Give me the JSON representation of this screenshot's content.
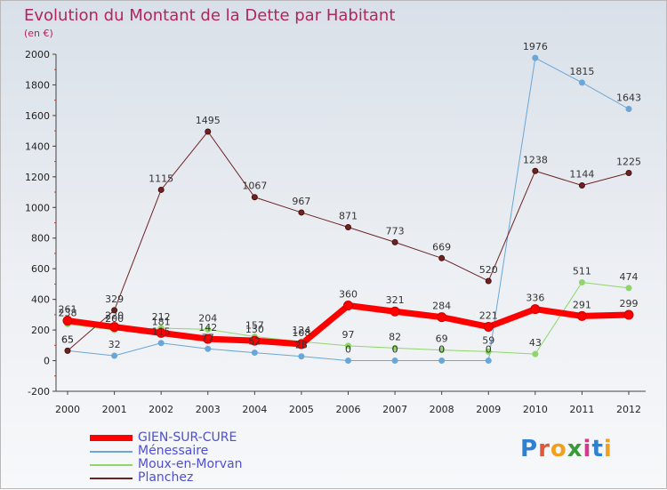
{
  "chart_data": {
    "type": "line",
    "title": "Evolution du Montant de la Dette par Habitant",
    "subtitle": "(en €)",
    "xlabel": "",
    "ylabel": "",
    "ylim": [
      -200,
      2000
    ],
    "yticks": [
      -200,
      0,
      200,
      400,
      600,
      800,
      1000,
      1200,
      1400,
      1600,
      1800,
      2000
    ],
    "categories": [
      "2000",
      "2001",
      "2002",
      "2003",
      "2004",
      "2005",
      "2006",
      "2007",
      "2008",
      "2009",
      "2010",
      "2011",
      "2012"
    ],
    "grid": false,
    "legend_position": "bottom-left",
    "series": [
      {
        "name": "GIEN-SUR-CURE",
        "color": "#ff0000",
        "width": 7,
        "values": [
          261,
          220,
          181,
          142,
          130,
          108,
          360,
          321,
          284,
          221,
          336,
          291,
          299
        ]
      },
      {
        "name": "Ménessaire",
        "color": "#6aa6d6",
        "width": 1,
        "values": [
          65,
          32,
          115,
          77,
          52,
          28,
          0,
          0,
          0,
          0,
          1976,
          1815,
          1643
        ]
      },
      {
        "name": "Moux-en-Morvan",
        "color": "#8fd66a",
        "width": 1,
        "values": [
          238,
          200,
          212,
          204,
          157,
          124,
          97,
          82,
          69,
          59,
          43,
          511,
          474
        ]
      },
      {
        "name": "Planchez",
        "color": "#6e2323",
        "width": 1,
        "values": [
          65,
          329,
          1115,
          1495,
          1067,
          967,
          871,
          773,
          669,
          520,
          1238,
          1144,
          1225
        ]
      }
    ]
  },
  "logo": {
    "text": "Proxiti",
    "letters": [
      "P",
      "r",
      "o",
      "x",
      "i",
      "t",
      "i"
    ],
    "colors": [
      "#2f7fd3",
      "#e0573a",
      "#f0a020",
      "#3a9a3a",
      "#d23a8a",
      "#2f7fd3",
      "#f0a020"
    ]
  }
}
